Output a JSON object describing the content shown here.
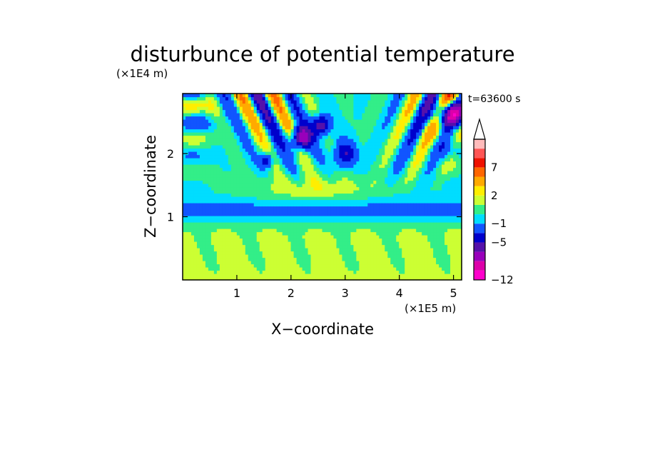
{
  "chart_data": {
    "type": "heatmap",
    "title": "disturbunce of potential temperature",
    "time_label": "t=63600 s",
    "xlabel": "X−coordinate",
    "ylabel": "Z−coordinate",
    "x_unit": "(×1E5 m)",
    "y_unit": "(×1E4 m)",
    "xlim": [
      0,
      5.15
    ],
    "ylim": [
      0,
      2.95
    ],
    "xticks": [
      1,
      2,
      3,
      4,
      5
    ],
    "xtick_labels": [
      "1",
      "2",
      "3",
      "4",
      "5"
    ],
    "yticks": [
      1,
      2
    ],
    "ytick_labels": [
      "1",
      "2"
    ],
    "colorbar": {
      "levels": [
        -12,
        -11,
        -9,
        -7,
        -5,
        -3,
        -1,
        0,
        1,
        2,
        3,
        5,
        7,
        9,
        11
      ],
      "tick_values": [
        -12,
        -5,
        -1,
        2,
        7
      ],
      "tick_labels": [
        "−12",
        "−5",
        "−1",
        "2",
        "7"
      ],
      "colors": [
        "#ff00cc",
        "#dd00aa",
        "#9900bb",
        "#5511aa",
        "#0000cc",
        "#1155ff",
        "#00ddff",
        "#33ee88",
        "#ccff33",
        "#ffee00",
        "#ffaa00",
        "#ff6600",
        "#ee1100",
        "#ff5555",
        "#ffbbbb"
      ],
      "extend_max": true
    }
  }
}
